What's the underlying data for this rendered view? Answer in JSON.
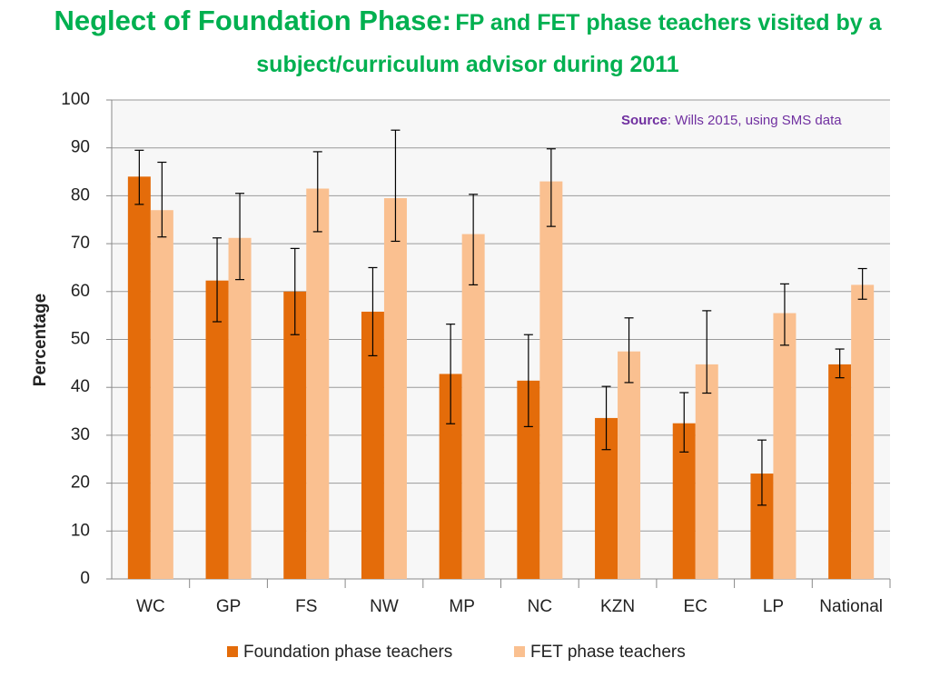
{
  "chart_data": {
    "type": "bar",
    "title": "Neglect of Foundation Phase:",
    "subtitle": "FP and FET phase teachers visited by a subject/curriculum advisor during 2011",
    "source_label": "Source",
    "source_text": ": Wills 2015, using SMS data",
    "y_label": "Percentage",
    "categories": [
      "WC",
      "GP",
      "FS",
      "NW",
      "MP",
      "NC",
      "KZN",
      "EC",
      "LP",
      "National"
    ],
    "series": [
      {
        "name": "Foundation phase teachers",
        "color": "#e46c0a",
        "values": [
          84,
          62.3,
          60,
          55.8,
          42.8,
          41.4,
          33.6,
          32.5,
          22,
          44.8
        ],
        "error_lower": [
          78.2,
          53.7,
          51,
          46.6,
          32.4,
          31.8,
          27,
          26.5,
          15.4,
          42
        ],
        "error_upper": [
          89.5,
          71.2,
          69,
          65,
          53.2,
          51,
          40.2,
          38.9,
          29,
          48
        ]
      },
      {
        "name": "FET phase teachers",
        "color": "#fac090",
        "values": [
          77,
          71.2,
          81.5,
          79.5,
          72,
          83,
          47.5,
          44.8,
          55.5,
          61.4
        ],
        "error_lower": [
          71.4,
          62.5,
          72.5,
          70.5,
          61.4,
          73.6,
          41,
          38.8,
          48.8,
          58.4
        ],
        "error_upper": [
          87,
          80.5,
          89.2,
          93.7,
          80.3,
          89.8,
          54.5,
          56,
          61.6,
          64.8
        ]
      }
    ],
    "ylim": [
      0,
      100
    ],
    "yticks": [
      0,
      10,
      20,
      30,
      40,
      50,
      60,
      70,
      80,
      90,
      100
    ],
    "grid": true
  }
}
